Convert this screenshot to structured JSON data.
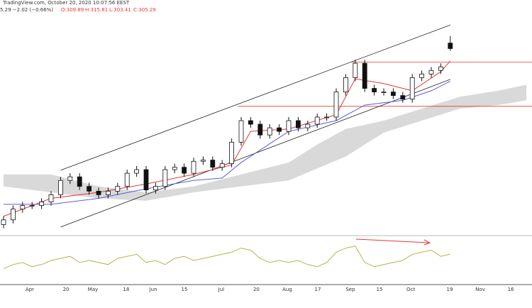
{
  "chart_data": {
    "type": "candlestick",
    "source": "TradingView.com, October 20, 2020 10:07:56 EEST",
    "quote": "5.29 −2.02 (−0.66%)",
    "ohlc_labels": [
      "O:309.89",
      "H:315.81",
      "L:303.41",
      "C:305.29"
    ],
    "x_labels": [
      "Apr",
      "20",
      "May",
      "18",
      "Jun",
      "15",
      "Jul",
      "20",
      "Aug",
      "17",
      "Sep",
      "15",
      "Oct",
      "19",
      "Nov",
      "16"
    ],
    "ylim": [
      150,
      340
    ],
    "open": [
      158,
      162,
      171,
      174,
      174,
      177,
      183,
      195,
      198,
      190,
      186,
      183,
      186,
      190,
      201,
      204,
      187,
      190,
      204,
      206,
      201,
      211,
      212,
      206,
      209,
      227,
      245,
      242,
      233,
      239,
      236,
      245,
      239,
      242,
      248,
      248,
      269,
      281,
      293,
      272,
      269,
      269,
      266,
      263,
      281,
      284,
      287,
      309.89
    ],
    "high": [
      165,
      174,
      177,
      177,
      180,
      186,
      198,
      201,
      201,
      193,
      189,
      189,
      193,
      204,
      207,
      207,
      193,
      207,
      209,
      209,
      214,
      215,
      215,
      212,
      230,
      248,
      248,
      245,
      242,
      242,
      248,
      248,
      245,
      251,
      251,
      272,
      284,
      296,
      296,
      275,
      272,
      272,
      269,
      284,
      287,
      290,
      293,
      315.81
    ],
    "low": [
      155,
      159,
      168,
      171,
      171,
      174,
      180,
      192,
      187,
      183,
      180,
      180,
      183,
      187,
      198,
      184,
      184,
      187,
      201,
      198,
      198,
      208,
      203,
      203,
      206,
      224,
      239,
      230,
      230,
      233,
      233,
      236,
      236,
      239,
      245,
      245,
      266,
      278,
      269,
      266,
      266,
      263,
      260,
      260,
      278,
      281,
      284,
      303.41
    ],
    "close": [
      162,
      171,
      174,
      174,
      177,
      183,
      195,
      198,
      190,
      186,
      183,
      186,
      190,
      201,
      204,
      187,
      190,
      204,
      206,
      201,
      211,
      212,
      206,
      209,
      227,
      245,
      242,
      233,
      239,
      236,
      245,
      239,
      242,
      248,
      248,
      269,
      281,
      293,
      272,
      269,
      269,
      266,
      263,
      281,
      284,
      287,
      290,
      305.29
    ],
    "lines": [
      {
        "color": "#e53935",
        "x": [
          0,
          5,
          10,
          15,
          20,
          24,
          26,
          30,
          35,
          37,
          40,
          43,
          46,
          47
        ],
        "values": [
          165,
          180,
          185,
          192,
          200,
          208,
          236,
          238,
          250,
          280,
          276,
          270,
          286,
          295
        ]
      },
      {
        "color": "#5c5ce0",
        "x": [
          0,
          5,
          10,
          15,
          20,
          23,
          25,
          30,
          35,
          38,
          42,
          45,
          47
        ],
        "values": [
          175,
          175,
          180,
          188,
          195,
          197,
          210,
          236,
          245,
          258,
          262,
          270,
          278
        ]
      }
    ],
    "cloud": {
      "color": "#d9d9d9",
      "x": [
        0,
        5,
        10,
        15,
        20,
        25,
        30,
        33,
        36,
        40,
        44,
        48,
        52,
        55
      ],
      "upper": [
        200,
        200,
        190,
        185,
        190,
        200,
        210,
        225,
        238,
        245,
        255,
        265,
        270,
        275
      ],
      "lower": [
        190,
        185,
        180,
        178,
        185,
        190,
        195,
        205,
        215,
        235,
        245,
        255,
        258,
        262
      ]
    },
    "channel": [
      {
        "x": [
          6,
          47
        ],
        "values": [
          203.5,
          325
        ]
      },
      {
        "x": [
          6,
          47
        ],
        "values": [
          156,
          279.5
        ]
      }
    ],
    "levels": [
      294,
      257
    ],
    "oscillator": {
      "color": "#b5b548",
      "ylim": [
        0,
        100
      ],
      "values": [
        30,
        40,
        45,
        35,
        40,
        50,
        55,
        60,
        45,
        50,
        45,
        40,
        55,
        60,
        65,
        45,
        50,
        40,
        55,
        60,
        50,
        55,
        60,
        65,
        70,
        80,
        75,
        55,
        45,
        50,
        45,
        50,
        40,
        35,
        45,
        70,
        80,
        85,
        45,
        35,
        40,
        45,
        50,
        65,
        70,
        75,
        60,
        65
      ]
    }
  }
}
